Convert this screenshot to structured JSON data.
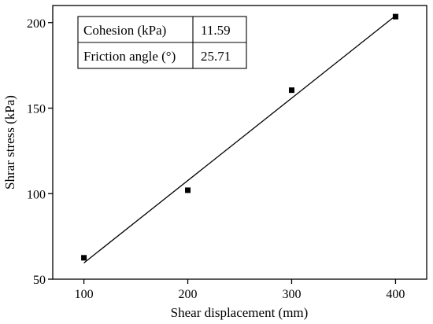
{
  "chart_data": {
    "type": "scatter",
    "xlabel": "Shear displacement (mm)",
    "ylabel": "Shrar stress (kPa)",
    "xlim": [
      70,
      430
    ],
    "ylim": [
      50,
      210
    ],
    "x_ticks": [
      100,
      200,
      300,
      400
    ],
    "y_ticks": [
      50,
      100,
      150,
      200
    ],
    "x_tick_labels": [
      "100",
      "200",
      "300",
      "400"
    ],
    "y_tick_labels": [
      "50",
      "100",
      "150",
      "200"
    ],
    "points": [
      {
        "x": 100,
        "y": 62.5
      },
      {
        "x": 200,
        "y": 102.0
      },
      {
        "x": 300,
        "y": 160.5
      },
      {
        "x": 400,
        "y": 203.5
      }
    ],
    "fit_line": {
      "x1": 100,
      "y1": 59.5,
      "x2": 400,
      "y2": 204.0
    },
    "grid": false,
    "legend": "none"
  },
  "table": {
    "rows": [
      {
        "label": "Cohesion (kPa)",
        "value": "11.59"
      },
      {
        "label": "Friction angle (°)",
        "value": "25.71"
      }
    ]
  }
}
